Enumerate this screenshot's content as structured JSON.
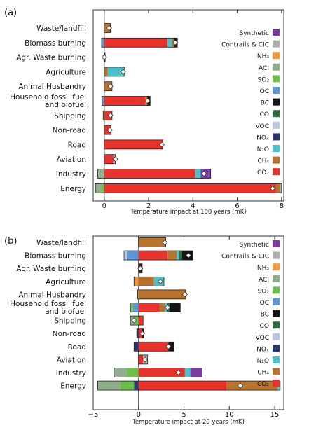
{
  "colors": {
    "CO2": "#e8332c",
    "CH4": "#b8732e",
    "N2O": "#4cc3cc",
    "NOx": "#2a3572",
    "VOC": "#b9c8e0",
    "CO": "#2e6b3c",
    "BC": "#151515",
    "OC": "#5b97d6",
    "SO2": "#6cc04a",
    "ACI": "#8fae8c",
    "NH3": "#f59a3a",
    "Contrails": "#aeaeae",
    "Synthetic": "#7d3ba1"
  },
  "legend": [
    {
      "key": "Synthetic",
      "label": "Synthetic"
    },
    {
      "key": "Contrails",
      "label": "Contrails & CIC"
    },
    {
      "key": "NH3",
      "label": "NH₃"
    },
    {
      "key": "ACI",
      "label": "ACI"
    },
    {
      "key": "SO2",
      "label": "SO₂"
    },
    {
      "key": "OC",
      "label": "OC"
    },
    {
      "key": "BC",
      "label": "BC"
    },
    {
      "key": "CO",
      "label": "CO"
    },
    {
      "key": "VOC",
      "label": "VOC"
    },
    {
      "key": "NOx",
      "label": "NOₓ"
    },
    {
      "key": "N2O",
      "label": "N₂O"
    },
    {
      "key": "CH4",
      "label": "CH₄"
    },
    {
      "key": "CO2",
      "label": "CO₂"
    }
  ],
  "chart_data": [
    {
      "panel_label": "(a)",
      "type": "bar",
      "orientation": "horizontal",
      "stacked": true,
      "xlabel": "Temperature impact at 100 years (mK)",
      "xlim": [
        -0.5,
        8.1
      ],
      "xticks": [
        0,
        2,
        4,
        6,
        8
      ],
      "categories": [
        "Waste/landfill",
        "Biomass burning",
        "Agr. Waste burning",
        "Agriculture",
        "Animal Husbandry",
        "Household fossil fuel\nand biofuel",
        "Shipping",
        "Non-road",
        "Road",
        "Aviation",
        "Industry",
        "Energy"
      ],
      "bars": [
        {
          "category": "Waste/landfill",
          "net": 0.22,
          "neg": [],
          "pos": [
            [
              "CH4",
              0.28
            ]
          ]
        },
        {
          "category": "Biomass burning",
          "net": 3.2,
          "neg": [
            [
              "OC",
              0.12
            ]
          ],
          "pos": [
            [
              "CO2",
              2.85
            ],
            [
              "N2O",
              0.2
            ],
            [
              "CH4",
              0.1
            ],
            [
              "BC",
              0.15
            ]
          ]
        },
        {
          "category": "Agr. Waste burning",
          "net": 0.0,
          "neg": [],
          "pos": [
            [
              "BC",
              0.04
            ]
          ]
        },
        {
          "category": "Agriculture",
          "net": 0.85,
          "neg": [],
          "pos": [
            [
              "CH4",
              0.15
            ],
            [
              "N2O",
              0.75
            ]
          ]
        },
        {
          "category": "Animal Husbandry",
          "net": 0.28,
          "neg": [],
          "pos": [
            [
              "CH4",
              0.35
            ]
          ]
        },
        {
          "category": "Household fossil fuel\nand biofuel",
          "net": 1.95,
          "neg": [
            [
              "OC",
              0.1
            ]
          ],
          "pos": [
            [
              "CO2",
              1.85
            ],
            [
              "CH4",
              0.1
            ],
            [
              "BC",
              0.12
            ]
          ]
        },
        {
          "category": "Shipping",
          "net": 0.28,
          "neg": [
            [
              "SO2",
              0.05
            ]
          ],
          "pos": [
            [
              "CO2",
              0.35
            ]
          ]
        },
        {
          "category": "Non-road",
          "net": 0.25,
          "neg": [],
          "pos": [
            [
              "CO2",
              0.3
            ]
          ]
        },
        {
          "category": "Road",
          "net": 2.6,
          "neg": [],
          "pos": [
            [
              "CO2",
              2.65
            ]
          ]
        },
        {
          "category": "Aviation",
          "net": 0.5,
          "neg": [],
          "pos": [
            [
              "CO2",
              0.4
            ],
            [
              "Contrails",
              0.1
            ]
          ]
        },
        {
          "category": "Industry",
          "net": 4.5,
          "neg": [
            [
              "ACI",
              0.3
            ]
          ],
          "pos": [
            [
              "CO2",
              4.1
            ],
            [
              "N2O",
              0.25
            ],
            [
              "Synthetic",
              0.45
            ]
          ]
        },
        {
          "category": "Energy",
          "net": 7.6,
          "neg": [
            [
              "SO2",
              0.1
            ],
            [
              "ACI",
              0.3
            ]
          ],
          "pos": [
            [
              "CO2",
              7.75
            ],
            [
              "CH4",
              0.2
            ],
            [
              "Contrails",
              0.05
            ]
          ]
        }
      ]
    },
    {
      "panel_label": "(b)",
      "type": "bar",
      "orientation": "horizontal",
      "stacked": true,
      "xlabel": "Temperature impact at 20 years (mK)",
      "xlim": [
        -5,
        16
      ],
      "xticks": [
        -5,
        0,
        5,
        10,
        15
      ],
      "categories": [
        "Waste/landfill",
        "Biomass burning",
        "Agr. Waste burning",
        "Agriculture",
        "Animal Husbandry",
        "Household fossil fuel\nand biofuel",
        "Shipping",
        "Non-road",
        "Road",
        "Aviation",
        "Industry",
        "Energy"
      ],
      "bars": [
        {
          "category": "Waste/landfill",
          "net": 2.9,
          "neg": [],
          "pos": [
            [
              "CH4",
              2.9
            ],
            [
              "Synthetic",
              0.1
            ]
          ]
        },
        {
          "category": "Biomass burning",
          "net": 5.5,
          "neg": [
            [
              "OC",
              1.3
            ],
            [
              "VOC",
              0.3
            ]
          ],
          "pos": [
            [
              "CO2",
              3.2
            ],
            [
              "CH4",
              1.0
            ],
            [
              "N2O",
              0.3
            ],
            [
              "CO",
              0.3
            ],
            [
              "BC",
              1.2
            ]
          ]
        },
        {
          "category": "Agr. Waste burning",
          "net": 0.2,
          "neg": [],
          "pos": [
            [
              "BC",
              0.4
            ]
          ]
        },
        {
          "category": "Agriculture",
          "net": 2.4,
          "neg": [
            [
              "NH3",
              0.5
            ]
          ],
          "pos": [
            [
              "CH4",
              1.7
            ],
            [
              "N2O",
              1.1
            ]
          ]
        },
        {
          "category": "Animal Husbandry",
          "net": 5.1,
          "neg": [
            [
              "NH3",
              0.1
            ]
          ],
          "pos": [
            [
              "CH4",
              5.2
            ]
          ]
        },
        {
          "category": "Household fossil fuel\nand biofuel",
          "net": 3.2,
          "neg": [
            [
              "OC",
              0.6
            ],
            [
              "SO2",
              0.2
            ],
            [
              "ACI",
              0.1
            ]
          ],
          "pos": [
            [
              "CO2",
              2.3
            ],
            [
              "CH4",
              0.6
            ],
            [
              "N2O",
              0.2
            ],
            [
              "CO",
              0.3
            ],
            [
              "BC",
              1.2
            ]
          ]
        },
        {
          "category": "Shipping",
          "net": -0.5,
          "neg": [
            [
              "SO2",
              0.4
            ],
            [
              "ACI",
              0.5
            ]
          ],
          "pos": [
            [
              "CO2",
              0.5
            ]
          ]
        },
        {
          "category": "Non-road",
          "net": 0.4,
          "neg": [
            [
              "NOx",
              0.2
            ]
          ],
          "pos": [
            [
              "CO2",
              0.4
            ],
            [
              "BC",
              0.2
            ]
          ]
        },
        {
          "category": "Road",
          "net": 3.3,
          "neg": [
            [
              "NOx",
              0.5
            ]
          ],
          "pos": [
            [
              "CO2",
              3.3
            ],
            [
              "BC",
              0.6
            ]
          ]
        },
        {
          "category": "Aviation",
          "net": 0.7,
          "neg": [],
          "pos": [
            [
              "CO2",
              0.5
            ],
            [
              "Contrails",
              0.5
            ]
          ]
        },
        {
          "category": "Industry",
          "net": 4.4,
          "neg": [
            [
              "SO2",
              1.3
            ],
            [
              "ACI",
              1.4
            ]
          ],
          "pos": [
            [
              "CO2",
              5.1
            ],
            [
              "N2O",
              0.6
            ],
            [
              "Synthetic",
              1.3
            ]
          ]
        },
        {
          "category": "Energy",
          "net": 11.2,
          "neg": [
            [
              "NOx",
              0.5
            ],
            [
              "SO2",
              1.5
            ],
            [
              "ACI",
              2.5
            ]
          ],
          "pos": [
            [
              "CO2",
              9.7
            ],
            [
              "CH4",
              5.6
            ],
            [
              "N2O",
              0.2
            ],
            [
              "Contrails",
              0.1
            ]
          ]
        }
      ]
    }
  ]
}
